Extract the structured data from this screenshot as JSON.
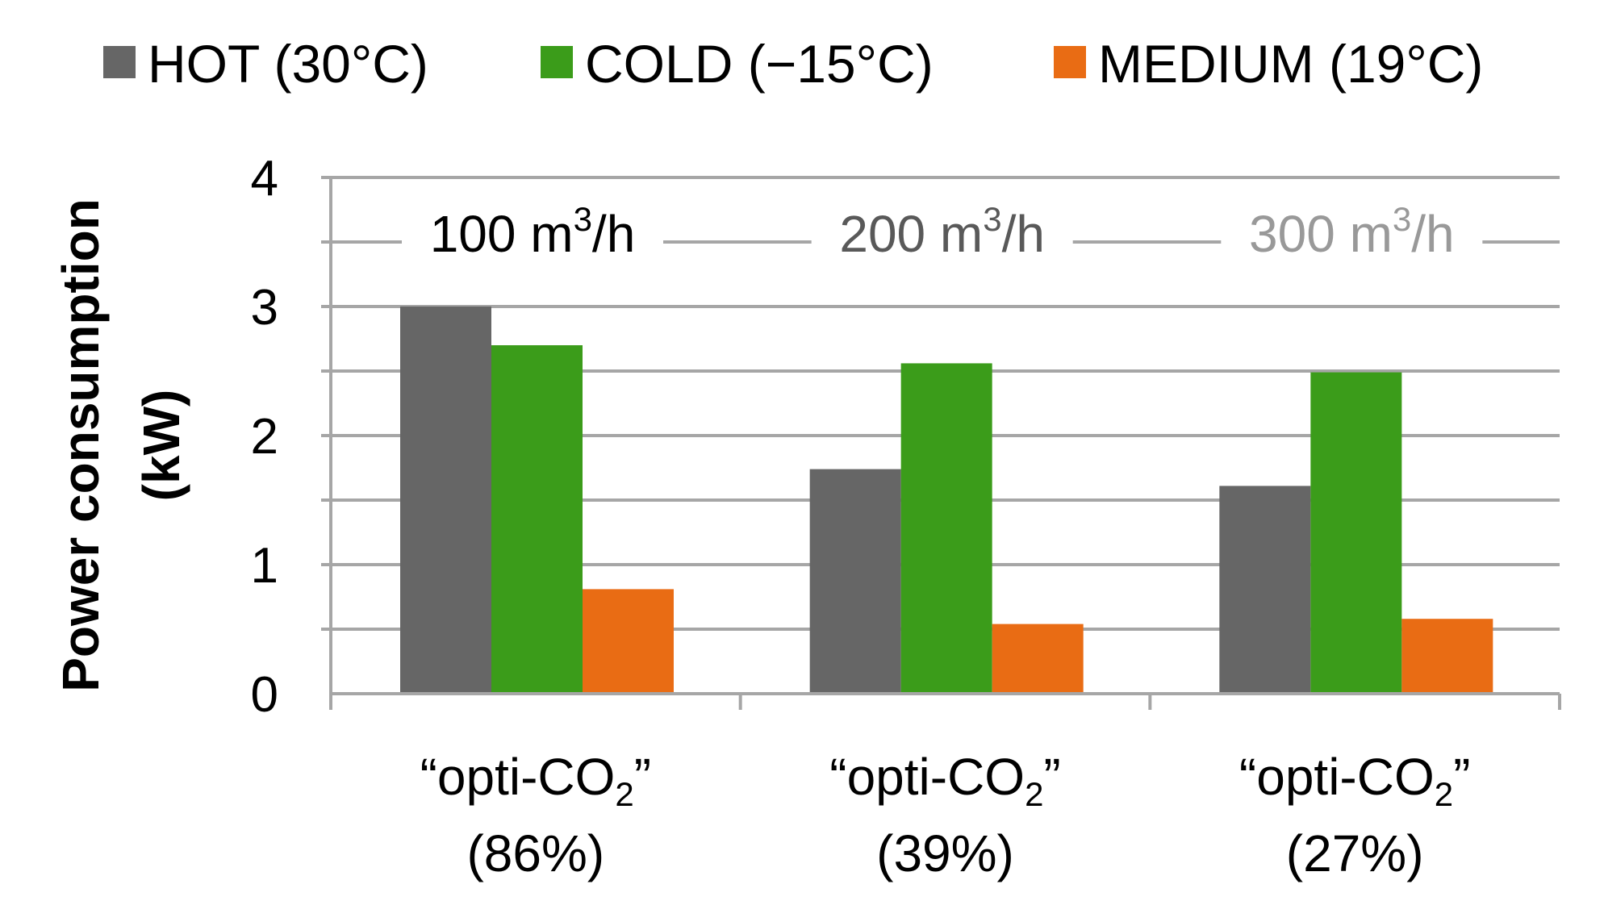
{
  "chart_data": {
    "type": "bar",
    "title": "",
    "ylabel_line1": "Power consumption",
    "ylabel_line2": "(kW)",
    "ylim": [
      0,
      4
    ],
    "yticks": [
      0,
      1,
      2,
      3,
      4
    ],
    "minor_gridlines": [
      0.5,
      1.5,
      2.5,
      3.5
    ],
    "grid": true,
    "legend_position": "top",
    "categories": [
      {
        "quote_open": "“opti-CO",
        "sub": "2",
        "quote_close": "”",
        "pct": "(86%)",
        "flow": "100 m",
        "flow_sup": "3",
        "flow_unit": "/h",
        "flow_color": "#000000"
      },
      {
        "quote_open": "“opti-CO",
        "sub": "2",
        "quote_close": "”",
        "pct": "(39%)",
        "flow": "200 m",
        "flow_sup": "3",
        "flow_unit": "/h",
        "flow_color": "#595959"
      },
      {
        "quote_open": "“opti-CO",
        "sub": "2",
        "quote_close": "”",
        "pct": "(27%)",
        "flow": "300 m",
        "flow_sup": "3",
        "flow_unit": "/h",
        "flow_color": "#999999"
      }
    ],
    "series": [
      {
        "name": "HOT (30°C)",
        "color": "#666666",
        "values": [
          3.0,
          1.74,
          1.61
        ]
      },
      {
        "name": "COLD (−15°C)",
        "color": "#3b9c1a",
        "values": [
          2.7,
          2.56,
          2.49
        ]
      },
      {
        "name": "MEDIUM (19°C)",
        "color": "#e96c14",
        "values": [
          0.81,
          0.54,
          0.58
        ]
      }
    ],
    "grid_color": "#a6a6a6"
  }
}
